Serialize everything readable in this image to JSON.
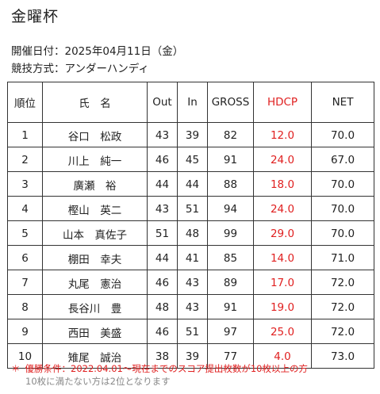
{
  "page": {
    "title": "金曜杯",
    "date_line": "開催日付：2025年04月11日（金）",
    "method_line": "競技方式：アンダーハンディ"
  },
  "table": {
    "headers": [
      "順位",
      "氏　名",
      "Out",
      "In",
      "GROSS",
      "HDCP",
      "NET"
    ],
    "rows": [
      [
        "1",
        "谷口　松政",
        "43",
        "39",
        "82",
        "12.0",
        "70.0"
      ],
      [
        "2",
        "川上　純一",
        "46",
        "45",
        "91",
        "24.0",
        "67.0"
      ],
      [
        "3",
        "廣瀬　裕",
        "44",
        "44",
        "88",
        "18.0",
        "70.0"
      ],
      [
        "4",
        "樫山　英二",
        "43",
        "51",
        "94",
        "24.0",
        "70.0"
      ],
      [
        "5",
        "山本　真佐子",
        "51",
        "48",
        "99",
        "29.0",
        "70.0"
      ],
      [
        "6",
        "棚田　幸夫",
        "44",
        "41",
        "85",
        "14.0",
        "71.0"
      ],
      [
        "7",
        "丸尾　憲治",
        "46",
        "43",
        "89",
        "17.0",
        "72.0"
      ],
      [
        "8",
        "長谷川　豊",
        "48",
        "43",
        "91",
        "19.0",
        "72.0"
      ],
      [
        "9",
        "西田　美盛",
        "46",
        "51",
        "97",
        "25.0",
        "72.0"
      ],
      [
        "10",
        "雉尾　誠治",
        "38",
        "39",
        "77",
        "4.0",
        "73.0"
      ]
    ]
  },
  "footnote": {
    "mark": "＊",
    "line1": "優勝条件：2022.04.01～現在までのスコア提出枚数が10枚以上の方",
    "line2": "10枚に満たない方は2位となります"
  },
  "colors": {
    "hdcp": "#e02020",
    "footnote": "#e02020",
    "footnote_secondary": "#888888"
  }
}
